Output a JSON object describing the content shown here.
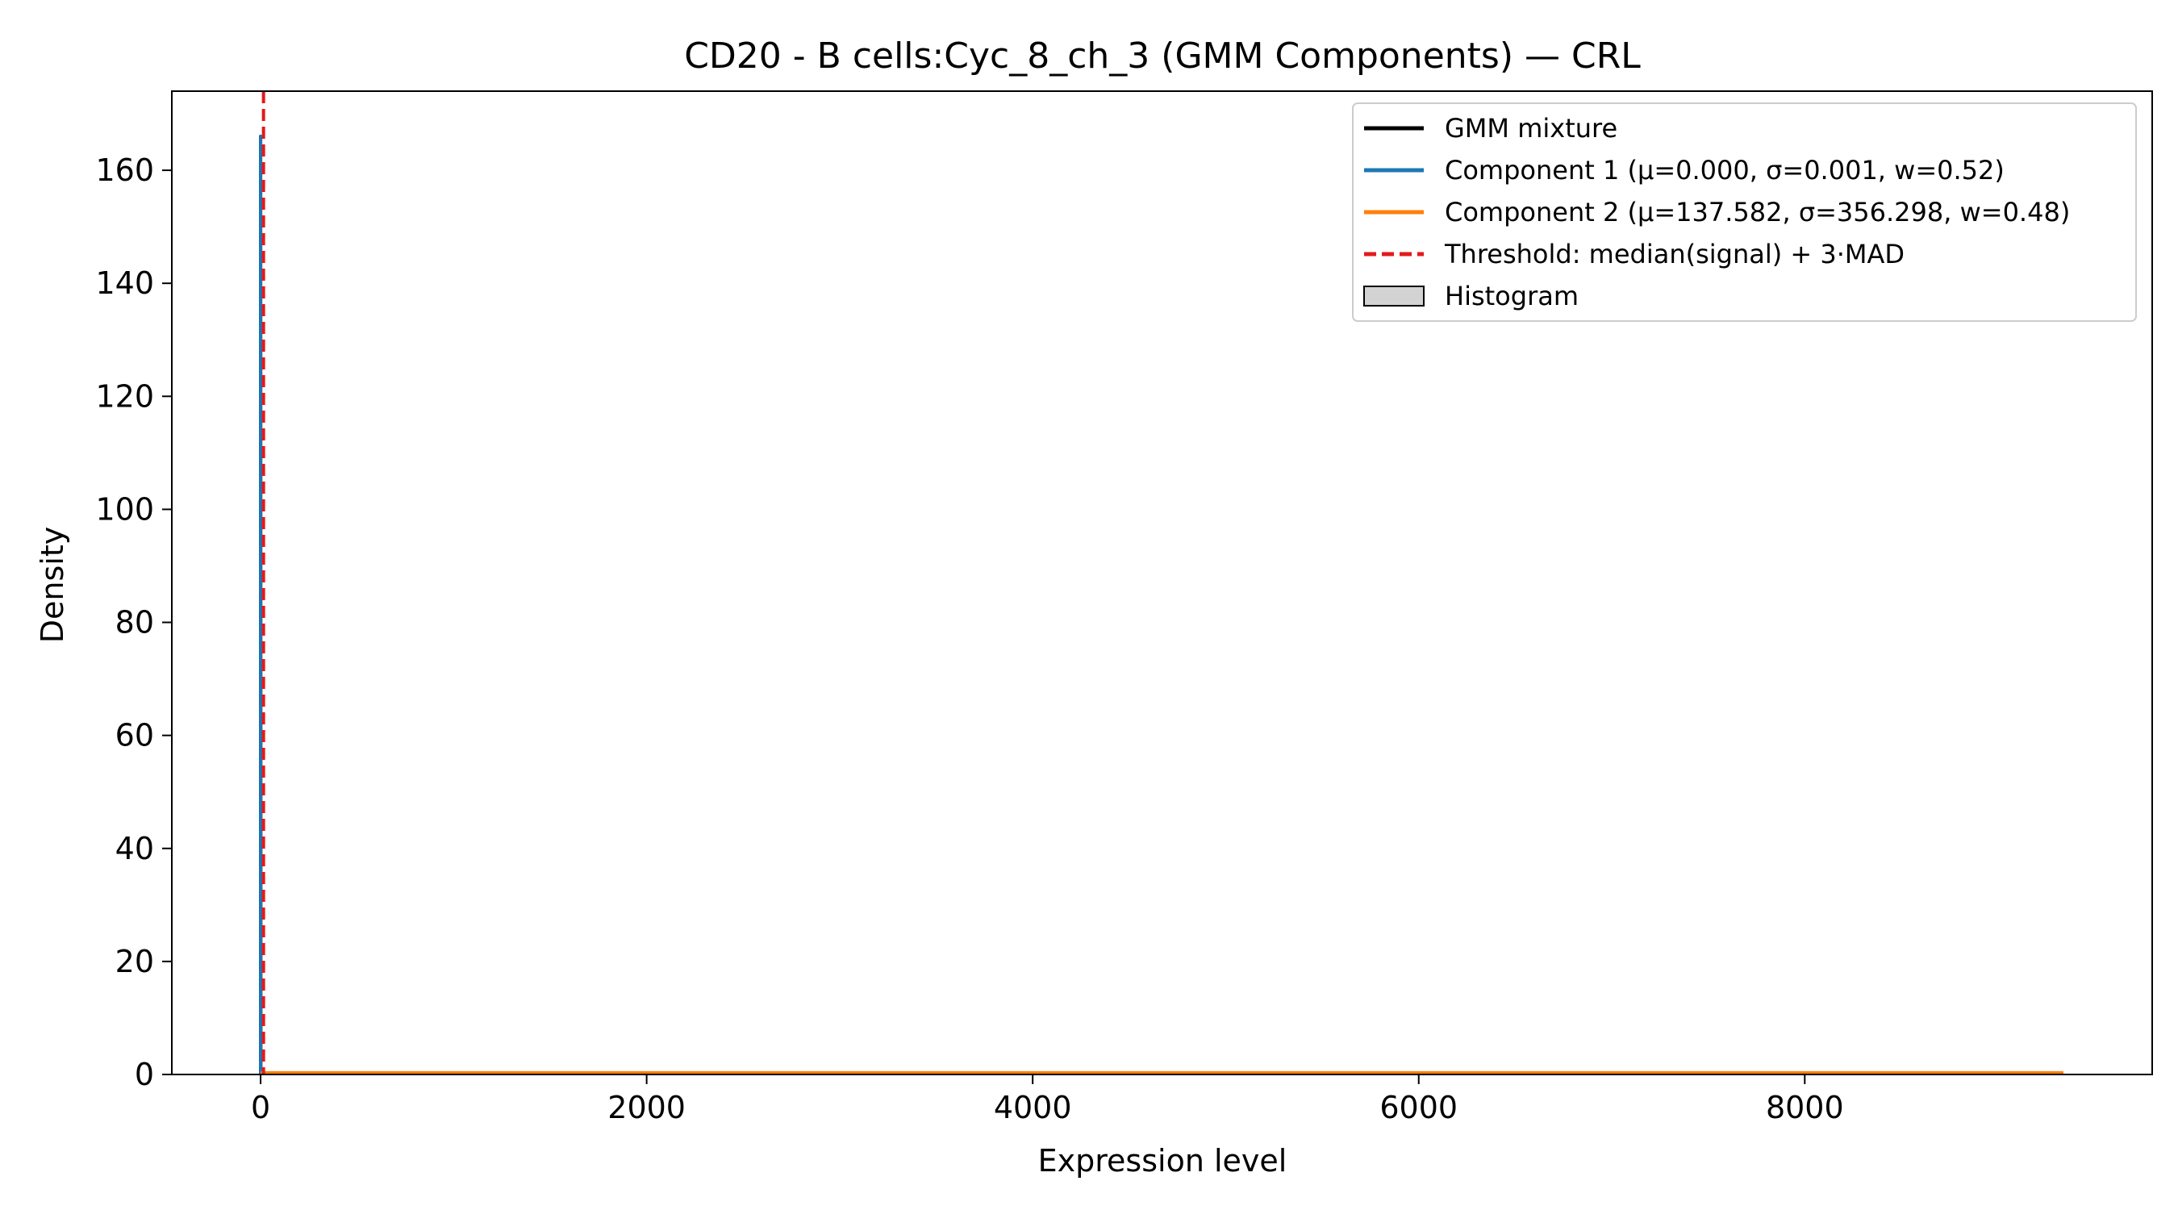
{
  "chart_data": {
    "type": "line",
    "title": "CD20 - B cells:Cyc_8_ch_3 (GMM Components) — CRL",
    "xlabel": "Expression level",
    "ylabel": "Density",
    "xlim": [
      -460,
      9800
    ],
    "ylim": [
      0,
      174
    ],
    "xticks": [
      0,
      2000,
      4000,
      6000,
      8000
    ],
    "yticks": [
      0,
      20,
      40,
      60,
      80,
      100,
      120,
      140,
      160
    ],
    "grid": false,
    "legend_position": "top-right",
    "series": [
      {
        "name": "GMM mixture",
        "color": "#000000",
        "style": "solid",
        "x": [
          0,
          0,
          0,
          1,
          2,
          3,
          5,
          10,
          50,
          100,
          500,
          1000,
          2000,
          4000,
          6000,
          8000,
          9340
        ],
        "y": [
          0,
          166,
          166,
          0.2,
          0.2,
          0.2,
          0.2,
          0.2,
          0.2,
          0.2,
          0.2,
          0.2,
          0.1,
          0.1,
          0.1,
          0.1,
          0.1
        ]
      },
      {
        "name": "Component 1 (μ=0.000, σ=0.001, w=0.52)",
        "color": "#1f77b4",
        "style": "solid",
        "x": [
          0,
          0,
          0,
          1,
          9340
        ],
        "y": [
          0,
          166,
          166,
          0,
          0
        ]
      },
      {
        "name": "Component 2 (μ=137.582, σ=356.298, w=0.48)",
        "color": "#ff7f0e",
        "style": "solid",
        "x": [
          0,
          1000,
          2000,
          4000,
          6000,
          8000,
          9340
        ],
        "y": [
          0.3,
          0.3,
          0.3,
          0.3,
          0.3,
          0.3,
          0.3
        ]
      }
    ],
    "threshold": {
      "name": "Threshold: median(signal) + 3·MAD",
      "color": "#e31a1c",
      "style": "dashed",
      "x": 15
    },
    "histogram": {
      "name": "Histogram",
      "fill": "#d3d3d3",
      "edge": "#000000"
    }
  }
}
